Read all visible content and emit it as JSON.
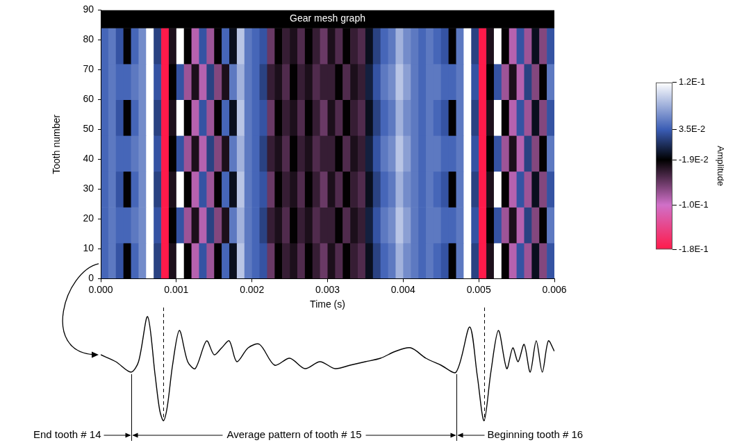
{
  "chart_data": [
    {
      "type": "heatmap",
      "title": "Gear mesh graph",
      "x_label": "Time (s)",
      "y_label": "Tooth number",
      "xlim": [
        0,
        0.006
      ],
      "xticks": [
        {
          "value": 0,
          "label": "0.000"
        },
        {
          "value": 0.001,
          "label": "0.001"
        },
        {
          "value": 0.002,
          "label": "0.002"
        },
        {
          "value": 0.003,
          "label": "0.003"
        },
        {
          "value": 0.004,
          "label": "0.004"
        },
        {
          "value": 0.005,
          "label": "0.005"
        },
        {
          "value": 0.006,
          "label": "0.006"
        }
      ],
      "ylim": [
        0,
        90
      ],
      "yticks": [
        0,
        10,
        20,
        30,
        40,
        50,
        60,
        70,
        80,
        90
      ],
      "grid": false,
      "time_edges": [
        0,
        0.0001,
        0.0002,
        0.0003,
        0.0004,
        0.0005,
        0.0006,
        0.0007,
        0.0008,
        0.0009,
        0.001,
        0.0011,
        0.0012,
        0.0013,
        0.0014,
        0.0015,
        0.0016,
        0.0017,
        0.0018,
        0.0019,
        0.002,
        0.0021,
        0.0022,
        0.0023,
        0.0024,
        0.0025,
        0.0026,
        0.0027,
        0.0028,
        0.0029,
        0.003,
        0.0031,
        0.0032,
        0.0033,
        0.0034,
        0.0035,
        0.0036,
        0.0037,
        0.0038,
        0.0039,
        0.004,
        0.0041,
        0.0042,
        0.0043,
        0.0044,
        0.0045,
        0.0046,
        0.0047,
        0.0048,
        0.0049,
        0.005,
        0.0051,
        0.0052,
        0.0053,
        0.0054,
        0.0055,
        0.0056,
        0.0057,
        0.0058,
        0.0059,
        0.006
      ],
      "tooth_edges": [
        0,
        12,
        24,
        36,
        48,
        60,
        72,
        84
      ],
      "cells": [
        [
          0.04,
          0.05,
          0.03,
          -0.02,
          0.04,
          0.06,
          0.12,
          0.02,
          -0.18,
          -0.03,
          0.12,
          -0.02,
          -0.09,
          0.03,
          -0.08,
          -0.02,
          0.04,
          -0.01,
          0.09,
          0.05,
          0.04,
          0.03,
          -0.06,
          -0.02,
          -0.04,
          -0.03,
          -0.05,
          -0.02,
          -0.04,
          -0.06,
          -0.03,
          -0.05,
          -0.02,
          -0.04,
          -0.05,
          -0.01,
          0.02,
          0.04,
          0.05,
          0.08,
          0.06,
          0.05,
          0.04,
          0.05,
          0.04,
          0.03,
          -0.02,
          0.05,
          0.12,
          0.02,
          -0.18,
          -0.03,
          0.12,
          -0.02,
          -0.09,
          0.03,
          -0.08,
          -0.01,
          -0.07,
          0.03
        ],
        [
          0.04,
          0.05,
          0.04,
          0.04,
          0.05,
          0.06,
          0.12,
          0.03,
          -0.18,
          -0.02,
          0.03,
          -0.08,
          -0.03,
          -0.09,
          0.02,
          -0.07,
          -0.03,
          0.05,
          0.08,
          0.05,
          0.04,
          0.02,
          -0.04,
          -0.03,
          -0.05,
          -0.02,
          -0.04,
          -0.03,
          -0.05,
          -0.04,
          -0.04,
          -0.02,
          -0.05,
          -0.03,
          -0.04,
          0.0,
          0.03,
          0.05,
          0.06,
          0.09,
          0.07,
          0.05,
          0.04,
          0.05,
          0.05,
          0.04,
          0.04,
          0.05,
          0.12,
          0.03,
          -0.18,
          -0.02,
          0.03,
          -0.08,
          -0.03,
          -0.09,
          0.02,
          -0.07,
          -0.02,
          0.05
        ],
        [
          0.04,
          0.05,
          0.03,
          -0.02,
          0.04,
          0.06,
          0.12,
          0.02,
          -0.18,
          -0.03,
          0.12,
          -0.02,
          -0.09,
          0.03,
          -0.08,
          -0.02,
          0.04,
          -0.01,
          0.09,
          0.05,
          0.04,
          0.03,
          -0.06,
          -0.02,
          -0.04,
          -0.03,
          -0.05,
          -0.02,
          -0.04,
          -0.06,
          -0.03,
          -0.05,
          -0.02,
          -0.04,
          -0.05,
          -0.01,
          0.02,
          0.04,
          0.05,
          0.08,
          0.06,
          0.05,
          0.04,
          0.05,
          0.04,
          0.03,
          -0.02,
          0.05,
          0.12,
          0.02,
          -0.18,
          -0.03,
          0.12,
          -0.02,
          -0.09,
          0.03,
          -0.08,
          -0.01,
          -0.07,
          0.03
        ],
        [
          0.04,
          0.05,
          0.04,
          0.04,
          0.05,
          0.06,
          0.12,
          0.03,
          -0.18,
          -0.02,
          0.03,
          -0.08,
          -0.03,
          -0.09,
          0.02,
          -0.07,
          -0.03,
          0.05,
          0.08,
          0.05,
          0.04,
          0.02,
          -0.04,
          -0.03,
          -0.05,
          -0.02,
          -0.04,
          -0.03,
          -0.05,
          -0.04,
          -0.04,
          -0.02,
          -0.05,
          -0.03,
          -0.04,
          0.0,
          0.03,
          0.05,
          0.06,
          0.09,
          0.07,
          0.05,
          0.04,
          0.05,
          0.05,
          0.04,
          0.04,
          0.05,
          0.12,
          0.03,
          -0.18,
          -0.02,
          0.03,
          -0.08,
          -0.03,
          -0.09,
          0.02,
          -0.07,
          -0.02,
          0.05
        ],
        [
          0.04,
          0.05,
          0.03,
          -0.02,
          0.04,
          0.06,
          0.12,
          0.02,
          -0.18,
          -0.03,
          0.12,
          -0.02,
          -0.09,
          0.03,
          -0.08,
          -0.02,
          0.04,
          -0.01,
          0.09,
          0.05,
          0.04,
          0.03,
          -0.06,
          -0.02,
          -0.04,
          -0.03,
          -0.05,
          -0.02,
          -0.04,
          -0.06,
          -0.03,
          -0.05,
          -0.02,
          -0.04,
          -0.05,
          -0.01,
          0.02,
          0.04,
          0.05,
          0.08,
          0.06,
          0.05,
          0.04,
          0.05,
          0.04,
          0.03,
          -0.02,
          0.05,
          0.12,
          0.02,
          -0.18,
          -0.03,
          0.12,
          -0.02,
          -0.09,
          0.03,
          -0.08,
          -0.01,
          -0.07,
          0.03
        ],
        [
          0.04,
          0.05,
          0.04,
          0.04,
          0.05,
          0.06,
          0.12,
          0.03,
          -0.18,
          -0.02,
          0.03,
          -0.08,
          -0.03,
          -0.09,
          0.02,
          -0.07,
          -0.03,
          0.05,
          0.08,
          0.05,
          0.04,
          0.02,
          -0.04,
          -0.03,
          -0.05,
          -0.02,
          -0.04,
          -0.03,
          -0.05,
          -0.04,
          -0.04,
          -0.02,
          -0.05,
          -0.03,
          -0.04,
          0.0,
          0.03,
          0.05,
          0.06,
          0.09,
          0.07,
          0.05,
          0.04,
          0.05,
          0.05,
          0.04,
          0.04,
          0.05,
          0.12,
          0.03,
          -0.18,
          -0.02,
          0.03,
          -0.08,
          -0.03,
          -0.09,
          0.02,
          -0.07,
          -0.02,
          0.05
        ],
        [
          0.04,
          0.05,
          0.03,
          -0.02,
          0.04,
          0.06,
          0.12,
          0.02,
          -0.18,
          -0.03,
          0.12,
          -0.02,
          -0.09,
          0.03,
          -0.08,
          -0.02,
          0.04,
          -0.01,
          0.09,
          0.05,
          0.04,
          0.03,
          -0.06,
          -0.02,
          -0.04,
          -0.03,
          -0.05,
          -0.02,
          -0.04,
          -0.06,
          -0.03,
          -0.05,
          -0.02,
          -0.04,
          -0.05,
          -0.01,
          0.02,
          0.04,
          0.05,
          0.08,
          0.06,
          0.05,
          0.04,
          0.05,
          0.04,
          0.03,
          -0.02,
          0.05,
          0.12,
          0.02,
          -0.18,
          -0.03,
          0.12,
          -0.02,
          -0.09,
          0.03,
          -0.08,
          -0.01,
          -0.07,
          0.03
        ]
      ],
      "colorbar": {
        "label": "Amplitude",
        "range": [
          -0.18,
          0.12
        ],
        "ticks": [
          {
            "value": 0.12,
            "label": "1.2E-1"
          },
          {
            "value": 0.035,
            "label": "3.5E-2"
          },
          {
            "value": -0.019,
            "label": "-1.9E-2"
          },
          {
            "value": -0.1,
            "label": "-1.0E-1"
          },
          {
            "value": -0.18,
            "label": "-1.8E-1"
          }
        ]
      }
    },
    {
      "type": "line",
      "tick_labels": false,
      "color": "#000000",
      "xlim": [
        0,
        0.006
      ],
      "ylim": [
        -0.19,
        0.13
      ],
      "x": [
        0,
        0.0002,
        0.0004,
        0.0005,
        0.00062,
        0.00072,
        0.00078,
        0.00083,
        0.00088,
        0.00095,
        0.00104,
        0.00115,
        0.00125,
        0.0014,
        0.0015,
        0.0016,
        0.0017,
        0.0018,
        0.00195,
        0.0021,
        0.0023,
        0.0025,
        0.0027,
        0.0029,
        0.0031,
        0.0033,
        0.0035,
        0.0037,
        0.0039,
        0.0041,
        0.0043,
        0.0045,
        0.0047,
        0.00488,
        0.00498,
        0.00507,
        0.00516,
        0.00526,
        0.00537,
        0.00545,
        0.00552,
        0.0056,
        0.00568,
        0.00576,
        0.00584,
        0.00592,
        0.006
      ],
      "values": [
        0.01,
        -0.01,
        -0.04,
        -0.01,
        0.12,
        -0.05,
        -0.15,
        -0.18,
        -0.14,
        -0.02,
        0.08,
        -0.01,
        -0.03,
        0.05,
        0.01,
        0.03,
        0.05,
        -0.01,
        0.03,
        0.04,
        -0.02,
        0.0,
        -0.03,
        -0.01,
        -0.03,
        -0.02,
        -0.01,
        0.0,
        0.02,
        0.03,
        0.0,
        -0.02,
        -0.04,
        0.09,
        -0.05,
        -0.18,
        -0.04,
        0.08,
        -0.03,
        0.03,
        -0.01,
        0.04,
        -0.04,
        0.05,
        -0.04,
        0.05,
        0.02
      ],
      "tooth_boundaries": [
        0.0004,
        0.0047
      ],
      "mesh_times": [
        0.00083,
        0.00507
      ],
      "annotations": [
        "End tooth # 14",
        "Average pattern of tooth # 15",
        "Beginning tooth # 16"
      ]
    }
  ]
}
